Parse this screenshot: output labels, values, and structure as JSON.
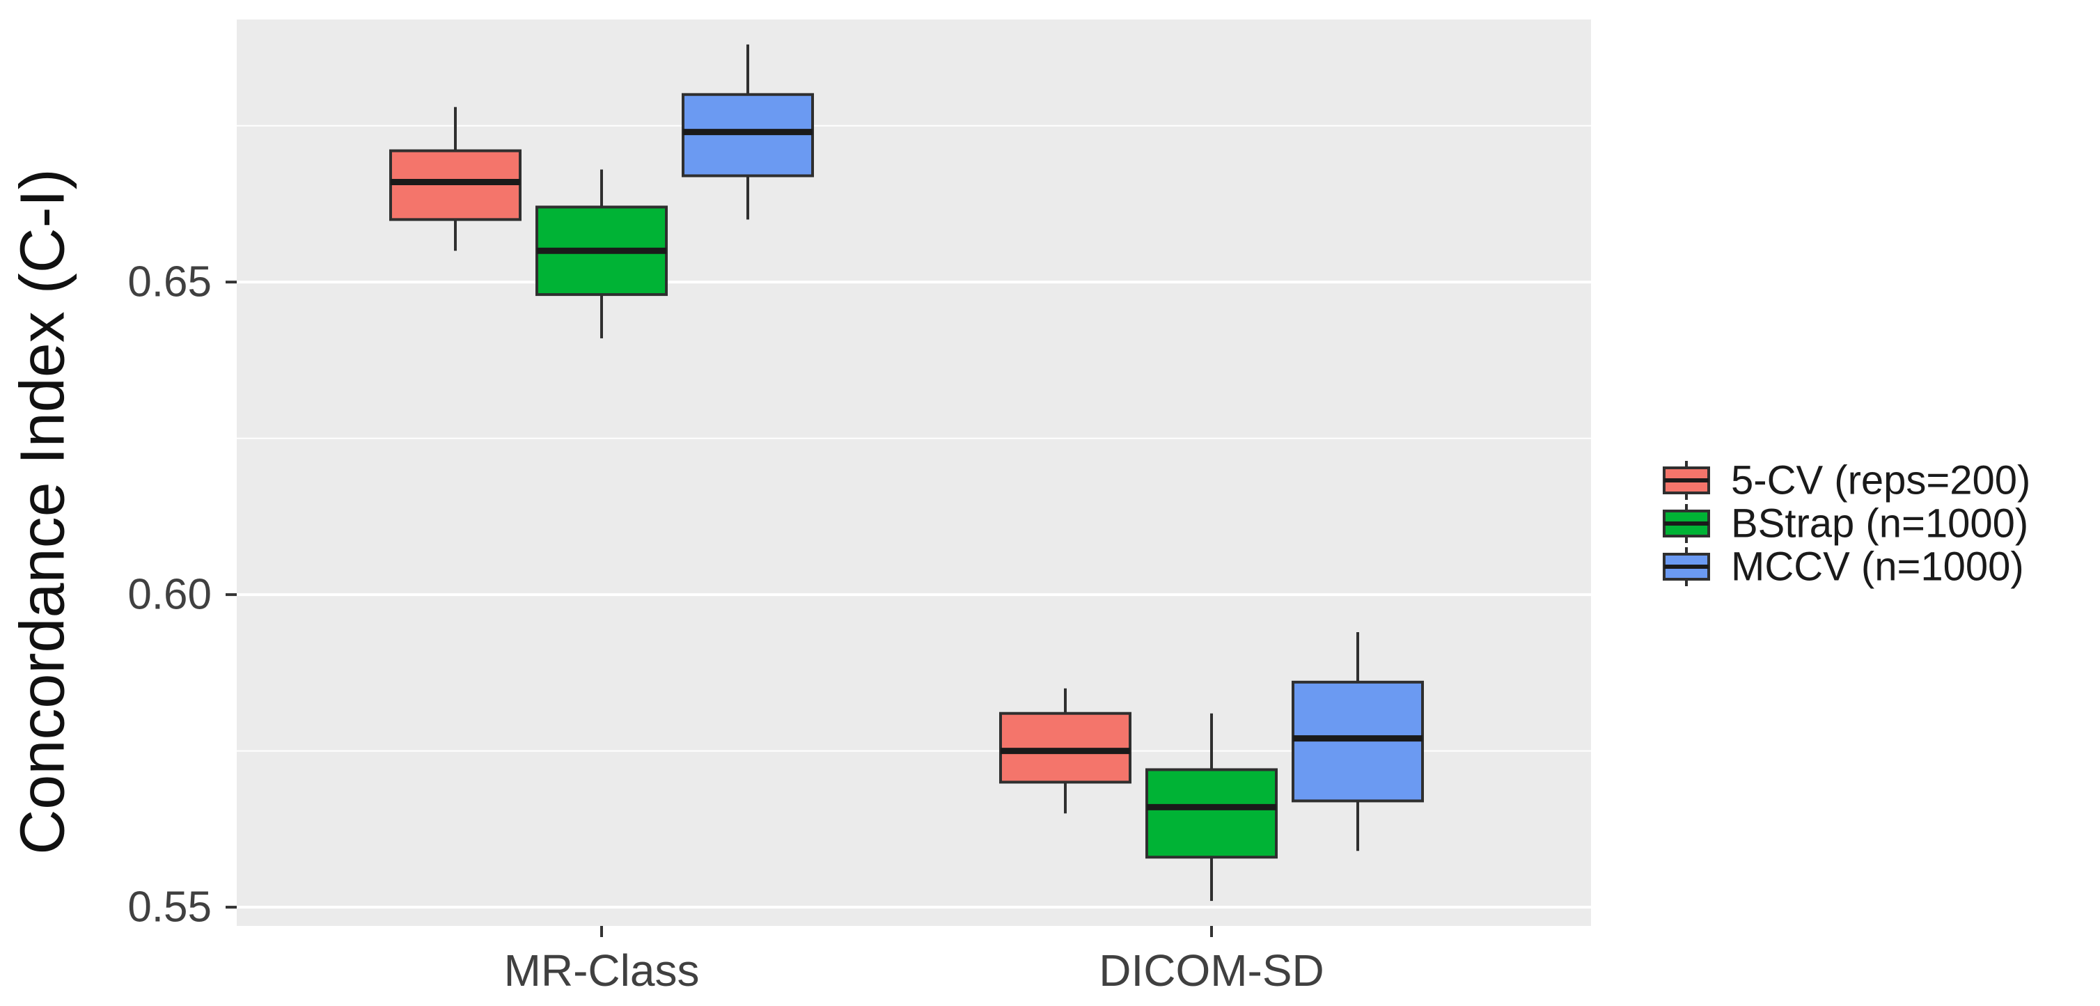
{
  "chart_data": {
    "type": "boxplot",
    "title": "",
    "xlabel": "",
    "ylabel": "Concordance Index (C-I)",
    "categories": [
      "MR-Class",
      "DICOM-SD"
    ],
    "y_ticks": [
      {
        "value": 0.55,
        "label": "0.55"
      },
      {
        "value": 0.6,
        "label": "0.60"
      },
      {
        "value": 0.65,
        "label": "0.65"
      }
    ],
    "y_minor_ticks": [
      0.575,
      0.625,
      0.675
    ],
    "ylim": [
      0.547,
      0.692
    ],
    "grid": "major-and-minor-white-on-gray",
    "legend_position": "right",
    "colors": {
      "panel_bg": "#EBEBEB",
      "grid": "#FFFFFF",
      "box_outline": "#2F2F2F",
      "median": "#1A1A1A",
      "axis_text": "#404040",
      "tick_mark": "#333333"
    },
    "series": [
      {
        "name": "5-CV (reps=200)",
        "color": "#F4756B",
        "boxes": [
          {
            "category": "MR-Class",
            "whisker_low": 0.655,
            "q1": 0.66,
            "median": 0.666,
            "q3": 0.671,
            "whisker_high": 0.678
          },
          {
            "category": "DICOM-SD",
            "whisker_low": 0.565,
            "q1": 0.57,
            "median": 0.575,
            "q3": 0.581,
            "whisker_high": 0.585
          }
        ]
      },
      {
        "name": "BStrap (n=1000)",
        "color": "#00B335",
        "boxes": [
          {
            "category": "MR-Class",
            "whisker_low": 0.641,
            "q1": 0.648,
            "median": 0.655,
            "q3": 0.662,
            "whisker_high": 0.668
          },
          {
            "category": "DICOM-SD",
            "whisker_low": 0.551,
            "q1": 0.558,
            "median": 0.566,
            "q3": 0.572,
            "whisker_high": 0.581
          }
        ]
      },
      {
        "name": "MCCV (n=1000)",
        "color": "#6B9AF2",
        "boxes": [
          {
            "category": "MR-Class",
            "whisker_low": 0.66,
            "q1": 0.667,
            "median": 0.674,
            "q3": 0.68,
            "whisker_high": 0.688
          },
          {
            "category": "DICOM-SD",
            "whisker_low": 0.559,
            "q1": 0.567,
            "median": 0.577,
            "q3": 0.586,
            "whisker_high": 0.594
          }
        ]
      }
    ]
  }
}
